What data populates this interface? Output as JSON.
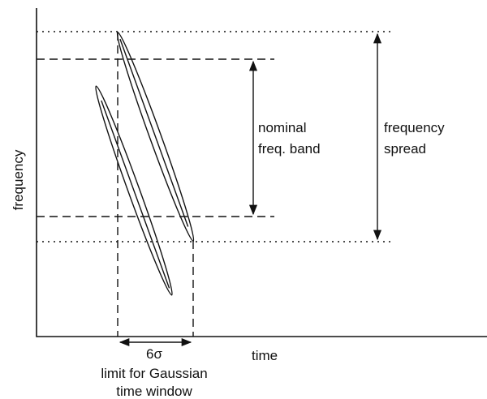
{
  "axes": {
    "y_label": "frequency",
    "x_label": "time"
  },
  "annotations": {
    "nominal_band": [
      "nominal",
      "freq. band"
    ],
    "frequency_spread": [
      "frequency",
      "spread"
    ],
    "width": "6σ",
    "window": [
      "limit for Gaussian",
      "time window"
    ]
  }
}
